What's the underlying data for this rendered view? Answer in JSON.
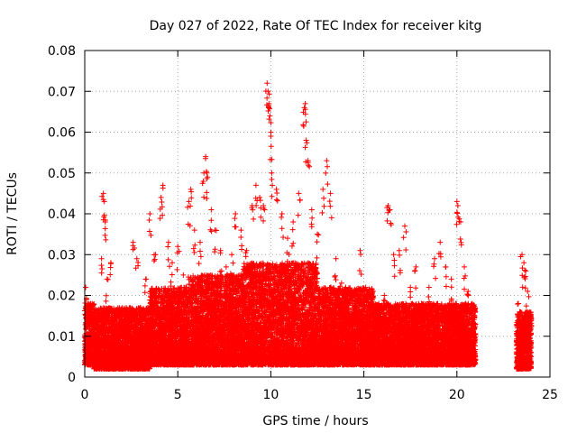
{
  "chart_data": {
    "type": "scatter",
    "title": "Day 027 of 2022, Rate Of TEC Index for receiver kitg",
    "xlabel": "GPS time / hours",
    "ylabel": "ROTI / TECUs",
    "xlim": [
      0,
      25
    ],
    "ylim": [
      0,
      0.08
    ],
    "x_ticks": [
      0,
      5,
      10,
      15,
      20,
      25
    ],
    "x_tick_labels": [
      "0",
      "5",
      "10",
      "15",
      "20",
      "25"
    ],
    "y_ticks": [
      0,
      0.01,
      0.02,
      0.03,
      0.04,
      0.05,
      0.06,
      0.07,
      0.08
    ],
    "y_tick_labels": [
      "0",
      "0.01",
      "0.02",
      "0.03",
      "0.04",
      "0.05",
      "0.06",
      "0.07",
      "0.08"
    ],
    "grid": true,
    "marker": "+",
    "color": "#ff0000",
    "series": [
      {
        "name": "ROTI",
        "points": [
          [
            0.05,
            0.022
          ],
          [
            0.1,
            0.019
          ],
          [
            0.2,
            0.008
          ],
          [
            0.4,
            0.011
          ],
          [
            0.6,
            0.014
          ],
          [
            0.8,
            0.009
          ],
          [
            0.9,
            0.029
          ],
          [
            1.0,
            0.045
          ],
          [
            1.05,
            0.043
          ],
          [
            1.1,
            0.038
          ],
          [
            1.2,
            0.024
          ],
          [
            1.4,
            0.028
          ],
          [
            1.6,
            0.016
          ],
          [
            1.8,
            0.012
          ],
          [
            2.0,
            0.012
          ],
          [
            2.3,
            0.015
          ],
          [
            2.6,
            0.033
          ],
          [
            2.8,
            0.029
          ],
          [
            3.0,
            0.017
          ],
          [
            3.3,
            0.024
          ],
          [
            3.5,
            0.04
          ],
          [
            3.8,
            0.03
          ],
          [
            4.1,
            0.044
          ],
          [
            4.2,
            0.047
          ],
          [
            4.5,
            0.033
          ],
          [
            4.7,
            0.028
          ],
          [
            5.0,
            0.032
          ],
          [
            5.3,
            0.025
          ],
          [
            5.6,
            0.043
          ],
          [
            5.7,
            0.046
          ],
          [
            5.9,
            0.036
          ],
          [
            6.2,
            0.033
          ],
          [
            6.4,
            0.05
          ],
          [
            6.5,
            0.054
          ],
          [
            6.6,
            0.049
          ],
          [
            6.8,
            0.041
          ],
          [
            7.0,
            0.036
          ],
          [
            7.3,
            0.031
          ],
          [
            7.6,
            0.027
          ],
          [
            7.9,
            0.03
          ],
          [
            8.1,
            0.04
          ],
          [
            8.4,
            0.036
          ],
          [
            8.7,
            0.031
          ],
          [
            9.0,
            0.042
          ],
          [
            9.2,
            0.047
          ],
          [
            9.4,
            0.044
          ],
          [
            9.6,
            0.042
          ],
          [
            9.8,
            0.072
          ],
          [
            9.85,
            0.07
          ],
          [
            9.9,
            0.067
          ],
          [
            9.95,
            0.064
          ],
          [
            10.0,
            0.059
          ],
          [
            10.05,
            0.05
          ],
          [
            10.3,
            0.046
          ],
          [
            10.6,
            0.04
          ],
          [
            10.9,
            0.034
          ],
          [
            11.2,
            0.038
          ],
          [
            11.5,
            0.045
          ],
          [
            11.8,
            0.066
          ],
          [
            11.85,
            0.067
          ],
          [
            11.9,
            0.058
          ],
          [
            12.0,
            0.053
          ],
          [
            12.2,
            0.041
          ],
          [
            12.5,
            0.035
          ],
          [
            12.8,
            0.046
          ],
          [
            13.0,
            0.053
          ],
          [
            13.2,
            0.045
          ],
          [
            13.5,
            0.029
          ],
          [
            13.8,
            0.023
          ],
          [
            14.1,
            0.019
          ],
          [
            14.5,
            0.017
          ],
          [
            14.8,
            0.031
          ],
          [
            15.1,
            0.022
          ],
          [
            15.5,
            0.021
          ],
          [
            15.8,
            0.018
          ],
          [
            16.1,
            0.02
          ],
          [
            16.3,
            0.042
          ],
          [
            16.4,
            0.041
          ],
          [
            16.6,
            0.03
          ],
          [
            16.9,
            0.031
          ],
          [
            17.2,
            0.037
          ],
          [
            17.5,
            0.022
          ],
          [
            17.8,
            0.027
          ],
          [
            18.1,
            0.018
          ],
          [
            18.5,
            0.022
          ],
          [
            18.8,
            0.029
          ],
          [
            19.1,
            0.033
          ],
          [
            19.4,
            0.027
          ],
          [
            19.7,
            0.024
          ],
          [
            20.0,
            0.043
          ],
          [
            20.05,
            0.042
          ],
          [
            20.2,
            0.038
          ],
          [
            20.4,
            0.027
          ],
          [
            20.6,
            0.021
          ],
          [
            20.8,
            0.014
          ],
          [
            23.3,
            0.018
          ],
          [
            23.5,
            0.03
          ],
          [
            23.6,
            0.028
          ],
          [
            23.7,
            0.026
          ],
          [
            23.8,
            0.021
          ],
          [
            23.9,
            0.015
          ]
        ],
        "dense_band": [
          {
            "x_start": 0,
            "x_end": 0.5,
            "y_low": 0.003,
            "y_high": 0.018
          },
          {
            "x_start": 0.5,
            "x_end": 3.5,
            "y_low": 0.002,
            "y_high": 0.017
          },
          {
            "x_start": 3.5,
            "x_end": 5.5,
            "y_low": 0.003,
            "y_high": 0.022
          },
          {
            "x_start": 5.5,
            "x_end": 8.5,
            "y_low": 0.003,
            "y_high": 0.025
          },
          {
            "x_start": 8.5,
            "x_end": 12.5,
            "y_low": 0.003,
            "y_high": 0.028
          },
          {
            "x_start": 12.5,
            "x_end": 15.5,
            "y_low": 0.003,
            "y_high": 0.022
          },
          {
            "x_start": 15.5,
            "x_end": 18.5,
            "y_low": 0.003,
            "y_high": 0.018
          },
          {
            "x_start": 18.5,
            "x_end": 21.0,
            "y_low": 0.003,
            "y_high": 0.018
          },
          {
            "x_start": 23.2,
            "x_end": 24.0,
            "y_low": 0.002,
            "y_high": 0.016
          }
        ]
      }
    ]
  }
}
